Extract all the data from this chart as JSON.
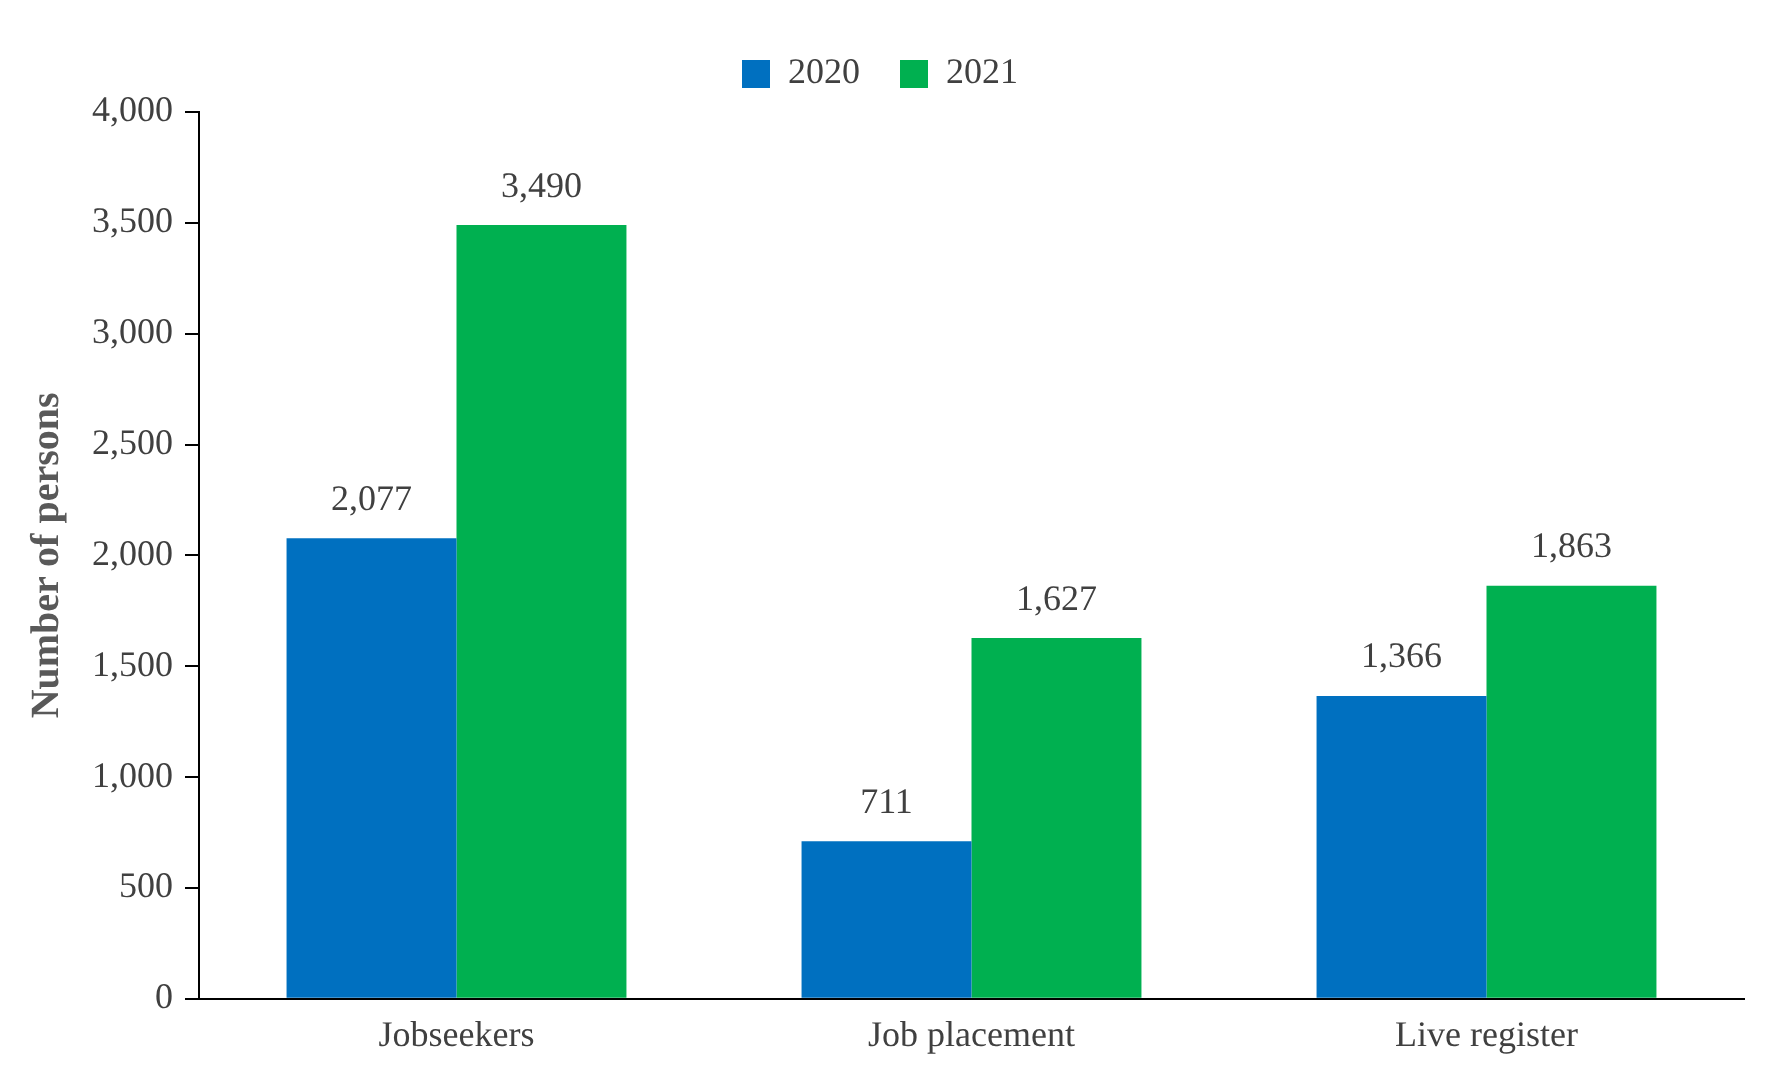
{
  "chart_data": {
    "type": "bar",
    "ylabel": "Number of persons",
    "categories": [
      "Jobseekers",
      "Job placement",
      "Live register"
    ],
    "series": [
      {
        "name": "2020",
        "color": "#0070c0",
        "values": [
          2077,
          711,
          1366
        ],
        "value_labels": [
          "2,077",
          "711",
          "1,366"
        ]
      },
      {
        "name": "2021",
        "color": "#00b050",
        "values": [
          3490,
          1627,
          1863
        ],
        "value_labels": [
          "3,490",
          "1,627",
          "1,863"
        ]
      }
    ],
    "ylim": [
      0,
      4000
    ],
    "yticks": [
      {
        "value": 0,
        "label": "0"
      },
      {
        "value": 500,
        "label": "500"
      },
      {
        "value": 1000,
        "label": "1,000"
      },
      {
        "value": 1500,
        "label": "1,500"
      },
      {
        "value": 2000,
        "label": "2,000"
      },
      {
        "value": 2500,
        "label": "2,500"
      },
      {
        "value": 3000,
        "label": "3,000"
      },
      {
        "value": 3500,
        "label": "3,500"
      },
      {
        "value": 4000,
        "label": "4,000"
      }
    ],
    "grid": false,
    "legend": "top"
  }
}
